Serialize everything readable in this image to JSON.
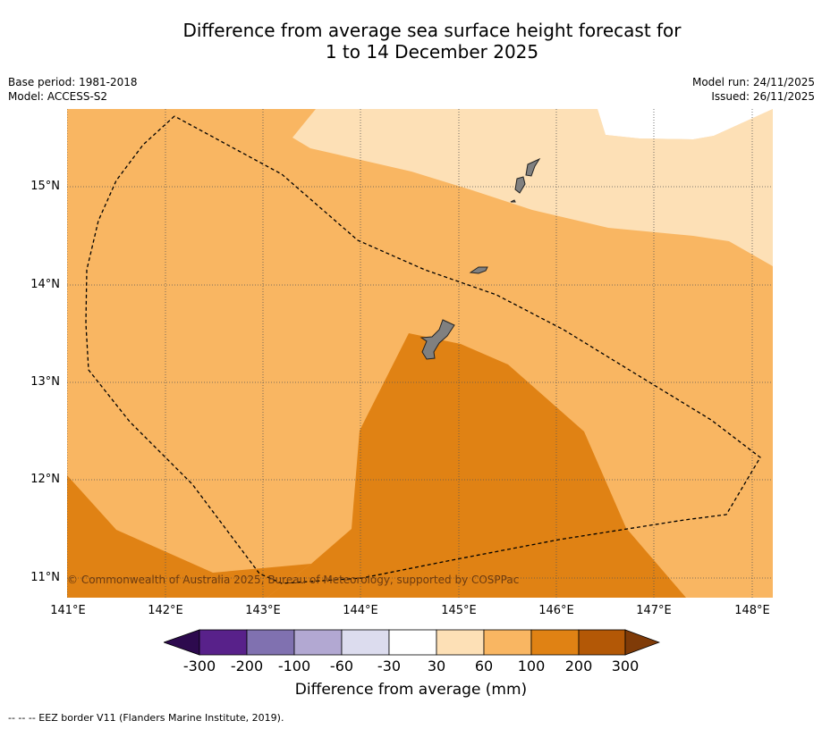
{
  "title_line1": "Difference from average sea surface height forecast for",
  "title_line2": "1 to 14 December 2025",
  "meta": {
    "base_period": "Base period: 1981-2018",
    "model": "Model: ACCESS-S2",
    "model_run": "Model run: 24/11/2025",
    "issued": "Issued: 26/11/2025"
  },
  "axes": {
    "lat_labels": [
      "15°N",
      "14°N",
      "13°N",
      "12°N",
      "11°N"
    ],
    "lon_labels": [
      "141°E",
      "142°E",
      "143°E",
      "144°E",
      "145°E",
      "146°E",
      "147°E",
      "148°E"
    ]
  },
  "colorbar": {
    "ticks": [
      "-300",
      "-200",
      "-100",
      "-60",
      "-30",
      "30",
      "60",
      "100",
      "200",
      "300"
    ],
    "colors": [
      "#2d0a4e",
      "#58218a",
      "#8071b0",
      "#b2a8d2",
      "#dcdcee",
      "#ffffff",
      "#fde0b6",
      "#f9b662",
      "#e08214",
      "#b35806",
      "#7f3b08"
    ],
    "label": "Difference from average (mm)"
  },
  "copyright": "© Commonwealth of Australia 2025, Bureau of Meteorology, supported by COSPPac",
  "legend": "--  --  -- EEZ border V11 (Flanders Marine Institute, 2019)."
}
